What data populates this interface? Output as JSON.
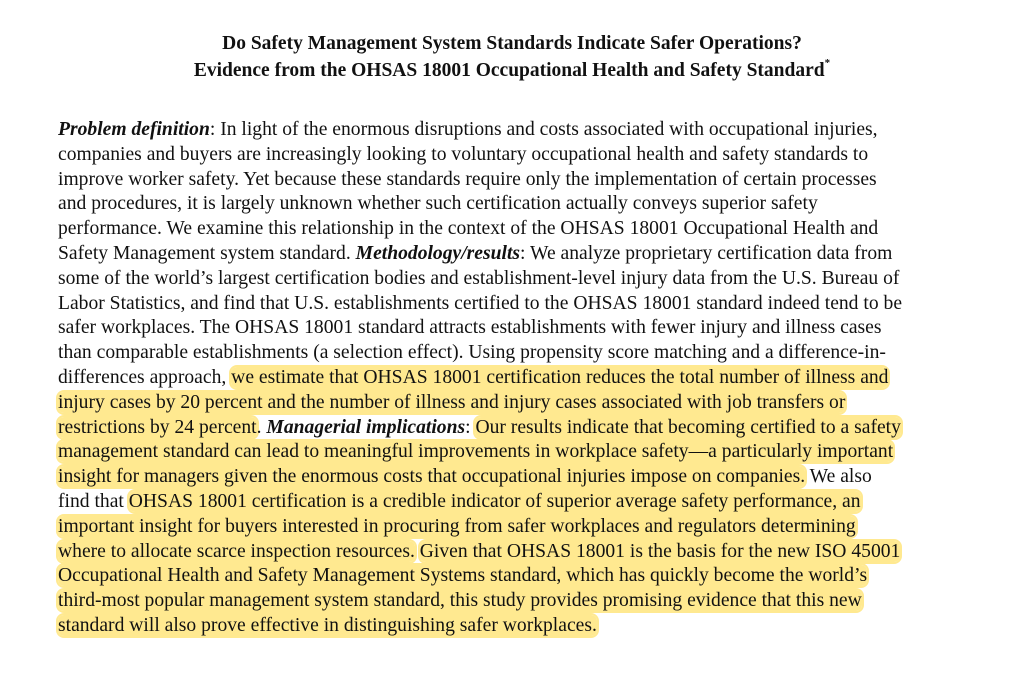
{
  "document": {
    "title_line1": "Do Safety Management System Standards Indicate Safer Operations?",
    "title_line2": "Evidence from the OHSAS 18001 Occupational Health and Safety Standard",
    "title_footnote_mark": "*",
    "highlight_color": "#ffe990",
    "lines": [
      [
        {
          "t": "Problem definition",
          "s": "bi"
        },
        {
          "t": ": In light of the enormous disruptions and costs associated with occupational injuries,"
        }
      ],
      [
        {
          "t": "companies and buyers are increasingly looking to voluntary occupational health and safety standards to"
        }
      ],
      [
        {
          "t": "improve worker safety. Yet because these standards require only the implementation of certain processes"
        }
      ],
      [
        {
          "t": "and procedures, it is largely unknown whether such certification actually conveys superior safety"
        }
      ],
      [
        {
          "t": "performance. We examine this relationship in the context of the OHSAS 18001 Occupational Health and"
        }
      ],
      [
        {
          "t": "Safety Management system standard. "
        },
        {
          "t": "Methodology/results",
          "s": "bi"
        },
        {
          "t": ": We analyze proprietary certification data from"
        }
      ],
      [
        {
          "t": "some of the world’s largest certification bodies and establishment-level injury data from the U.S. Bureau of"
        }
      ],
      [
        {
          "t": "Labor Statistics, and find that U.S. establishments certified to the OHSAS 18001 standard indeed tend to be"
        }
      ],
      [
        {
          "t": "safer workplaces. The OHSAS 18001 standard attracts establishments with fewer injury and illness cases"
        }
      ],
      [
        {
          "t": "than comparable establishments (a selection effect). Using propensity score matching and a difference-in-"
        }
      ],
      [
        {
          "t": "differences approach, "
        },
        {
          "t": "we estimate that OHSAS 18001 certification reduces the total number of illness and",
          "s": "hl"
        }
      ],
      [
        {
          "t": "injury cases by 20 percent and the number of illness and injury cases associated with job transfers or",
          "s": "hl"
        }
      ],
      [
        {
          "t": "restrictions by 24 percent",
          "s": "hl"
        },
        {
          "t": ". "
        },
        {
          "t": "Managerial implications",
          "s": "bi"
        },
        {
          "t": ": "
        },
        {
          "t": "Our results indicate that becoming certified to a safety",
          "s": "hl"
        }
      ],
      [
        {
          "t": "management standard can lead to meaningful improvements in workplace safety—a particularly important",
          "s": "hl"
        }
      ],
      [
        {
          "t": "insight for managers given the enormous costs that occupational injuries impose on companies.",
          "s": "hl"
        },
        {
          "t": " We also"
        }
      ],
      [
        {
          "t": "find that "
        },
        {
          "t": "OHSAS 18001 certification is a credible indicator of superior average safety performance, an",
          "s": "hl"
        }
      ],
      [
        {
          "t": "important insight for buyers interested in procuring from safer workplaces and regulators determining",
          "s": "hl"
        }
      ],
      [
        {
          "t": "where to allocate scarce inspection resources.",
          "s": "hl"
        },
        {
          "t": " "
        },
        {
          "t": "Given that OHSAS 18001 is the basis for the new ISO 45001",
          "s": "hl"
        }
      ],
      [
        {
          "t": "Occupational Health and Safety Management Systems standard, which has quickly become the world’s",
          "s": "hl"
        }
      ],
      [
        {
          "t": "third-most popular management system standard, this study provides promising evidence that this new",
          "s": "hl"
        }
      ],
      [
        {
          "t": "standard will also prove effective in distinguishing safer workplaces.",
          "s": "hl"
        }
      ]
    ]
  }
}
